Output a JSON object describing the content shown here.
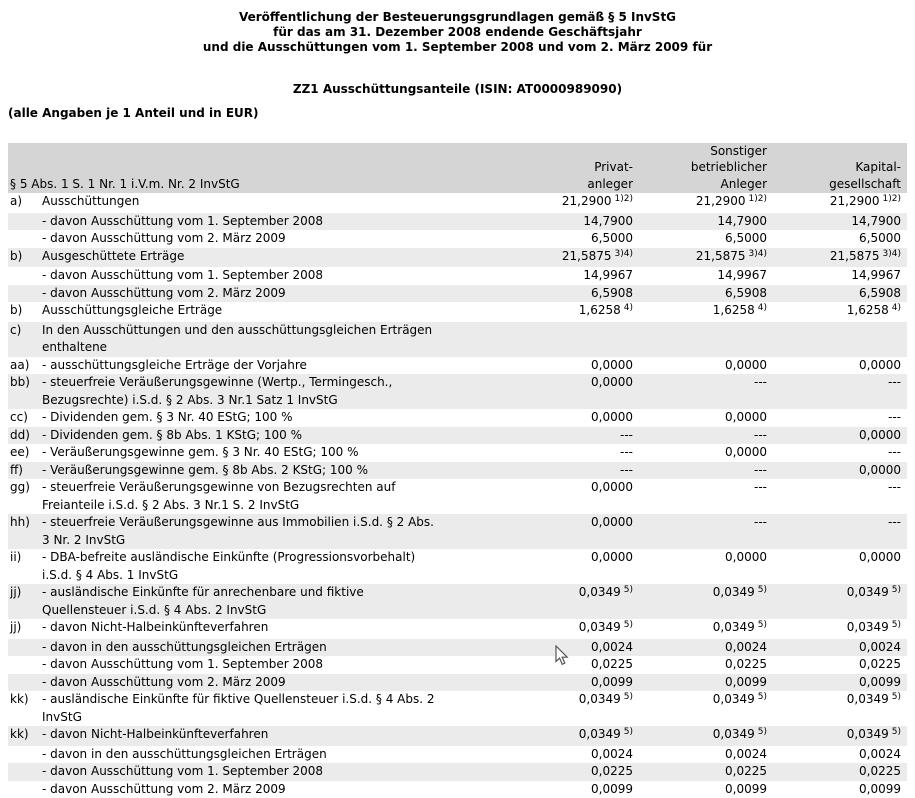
{
  "page": {
    "title_lines": [
      "Veröffentlichung der Besteuerungsgrundlagen gemäß § 5 InvStG",
      "für das am 31. Dezember 2008 endende Geschäftsjahr",
      "und die Ausschüttungen vom 1. September 2008 und vom 2. März 2009 für"
    ],
    "fund_line": "ZZ1 Ausschüttungsanteile (ISIN: AT0000989090)",
    "note_line": "(alle Angaben je 1 Anteil und in EUR)"
  },
  "colors": {
    "header_bg": "#d5d5d5",
    "stripe_bg": "#ebebeb",
    "text": "#000000"
  },
  "table": {
    "law_reference": "§ 5 Abs. 1 S. 1 Nr. 1 i.V.m. Nr. 2 InvStG",
    "column_headers": [
      [
        "Privat-",
        "anleger"
      ],
      [
        "Sonstiger",
        "betrieblicher",
        "Anleger"
      ],
      [
        "Kapital-",
        "gesellschaft"
      ]
    ],
    "rows": [
      {
        "label": "a)",
        "lines": [
          "Ausschüttungen"
        ],
        "values": [
          [
            "21,2900",
            "1)2)"
          ],
          [
            "21,2900",
            "1)2)"
          ],
          [
            "21,2900",
            "1)2)"
          ]
        ]
      },
      {
        "label": "",
        "lines": [
          "- davon Ausschüttung vom 1. September 2008"
        ],
        "values": [
          [
            "14,7900"
          ],
          [
            "14,7900"
          ],
          [
            "14,7900"
          ]
        ]
      },
      {
        "label": "",
        "lines": [
          "- davon Ausschüttung vom 2. März 2009"
        ],
        "values": [
          [
            "6,5000"
          ],
          [
            "6,5000"
          ],
          [
            "6,5000"
          ]
        ]
      },
      {
        "label": "b)",
        "lines": [
          "Ausgeschüttete Erträge"
        ],
        "values": [
          [
            "21,5875",
            "3)4)"
          ],
          [
            "21,5875",
            "3)4)"
          ],
          [
            "21,5875",
            "3)4)"
          ]
        ]
      },
      {
        "label": "",
        "lines": [
          "- davon Ausschüttung vom 1. September 2008"
        ],
        "values": [
          [
            "14,9967"
          ],
          [
            "14,9967"
          ],
          [
            "14,9967"
          ]
        ]
      },
      {
        "label": "",
        "lines": [
          "- davon Ausschüttung vom 2. März 2009"
        ],
        "values": [
          [
            "6,5908"
          ],
          [
            "6,5908"
          ],
          [
            "6,5908"
          ]
        ]
      },
      {
        "label": "b)",
        "lines": [
          "Ausschüttungsgleiche Erträge"
        ],
        "values": [
          [
            "1,6258",
            "4)"
          ],
          [
            "1,6258",
            "4)"
          ],
          [
            "1,6258",
            "4)"
          ]
        ]
      },
      {
        "label": "c)",
        "lines": [
          "In den Ausschüttungen und den ausschüttungsgleichen Erträgen",
          "enthaltene"
        ],
        "values": [
          null,
          null,
          null
        ]
      },
      {
        "label": "aa)",
        "lines": [
          "- ausschüttungsgleiche Erträge der Vorjahre"
        ],
        "values": [
          [
            "0,0000"
          ],
          [
            "0,0000"
          ],
          [
            "0,0000"
          ]
        ]
      },
      {
        "label": "bb)",
        "lines": [
          "- steuerfreie Veräußerungsgewinne (Wertp., Termingesch.,",
          "Bezugsrechte) i.S.d. § 2 Abs. 3 Nr.1 Satz 1 InvStG"
        ],
        "values": [
          [
            "0,0000"
          ],
          [
            "---"
          ],
          [
            "---"
          ]
        ]
      },
      {
        "label": "cc)",
        "lines": [
          "- Dividenden gem. § 3 Nr. 40 EStG; 100 %"
        ],
        "values": [
          [
            "0,0000"
          ],
          [
            "0,0000"
          ],
          [
            "---"
          ]
        ]
      },
      {
        "label": "dd)",
        "lines": [
          "- Dividenden gem. § 8b Abs. 1 KStG; 100 %"
        ],
        "values": [
          [
            "---"
          ],
          [
            "---"
          ],
          [
            "0,0000"
          ]
        ]
      },
      {
        "label": "ee)",
        "lines": [
          "- Veräußerungsgewinne gem. § 3 Nr. 40 EStG; 100 %"
        ],
        "values": [
          [
            "---"
          ],
          [
            "0,0000"
          ],
          [
            "---"
          ]
        ]
      },
      {
        "label": "ff)",
        "lines": [
          "- Veräußerungsgewinne gem. § 8b Abs. 2 KStG; 100 %"
        ],
        "values": [
          [
            "---"
          ],
          [
            "---"
          ],
          [
            "0,0000"
          ]
        ]
      },
      {
        "label": "gg)",
        "lines": [
          "- steuerfreie Veräußerungsgewinne von Bezugsrechten auf",
          "Freianteile i.S.d. § 2 Abs. 3 Nr.1 S. 2 InvStG"
        ],
        "values": [
          [
            "0,0000"
          ],
          [
            "---"
          ],
          [
            "---"
          ]
        ]
      },
      {
        "label": "hh)",
        "lines": [
          "- steuerfreie Veräußerungsgewinne aus Immobilien i.S.d. § 2 Abs.",
          "3 Nr. 2 InvStG"
        ],
        "values": [
          [
            "0,0000"
          ],
          [
            "---"
          ],
          [
            "---"
          ]
        ]
      },
      {
        "label": "ii)",
        "lines": [
          "- DBA-befreite ausländische Einkünfte (Progressionsvorbehalt)",
          "i.S.d. § 4 Abs. 1 InvStG"
        ],
        "values": [
          [
            "0,0000"
          ],
          [
            "0,0000"
          ],
          [
            "0,0000"
          ]
        ]
      },
      {
        "label": "jj)",
        "lines": [
          "- ausländische Einkünfte für anrechenbare und fiktive",
          "Quellensteuer i.S.d. § 4 Abs. 2 InvStG"
        ],
        "values": [
          [
            "0,0349",
            "5)"
          ],
          [
            "0,0349",
            "5)"
          ],
          [
            "0,0349",
            "5)"
          ]
        ]
      },
      {
        "label": "jj)",
        "lines": [
          "- davon Nicht-Halbeinkünfteverfahren"
        ],
        "values": [
          [
            "0,0349",
            "5)"
          ],
          [
            "0,0349",
            "5)"
          ],
          [
            "0,0349",
            "5)"
          ]
        ]
      },
      {
        "label": "",
        "lines": [
          "- davon in den ausschüttungsgleichen Erträgen"
        ],
        "values": [
          [
            "0,0024"
          ],
          [
            "0,0024"
          ],
          [
            "0,0024"
          ]
        ]
      },
      {
        "label": "",
        "lines": [
          "- davon Ausschüttung vom 1. September 2008"
        ],
        "values": [
          [
            "0,0225"
          ],
          [
            "0,0225"
          ],
          [
            "0,0225"
          ]
        ]
      },
      {
        "label": "",
        "lines": [
          "- davon Ausschüttung vom 2. März 2009"
        ],
        "values": [
          [
            "0,0099"
          ],
          [
            "0,0099"
          ],
          [
            "0,0099"
          ]
        ]
      },
      {
        "label": "kk)",
        "lines": [
          "- ausländische Einkünfte für fiktive Quellensteuer i.S.d. § 4 Abs. 2",
          "InvStG"
        ],
        "values": [
          [
            "0,0349",
            "5)"
          ],
          [
            "0,0349",
            "5)"
          ],
          [
            "0,0349",
            "5)"
          ]
        ]
      },
      {
        "label": "kk)",
        "lines": [
          "- davon Nicht-Halbeinkünfteverfahren"
        ],
        "values": [
          [
            "0,0349",
            "5)"
          ],
          [
            "0,0349",
            "5)"
          ],
          [
            "0,0349",
            "5)"
          ]
        ]
      },
      {
        "label": "",
        "lines": [
          "- davon in den ausschüttungsgleichen Erträgen"
        ],
        "values": [
          [
            "0,0024"
          ],
          [
            "0,0024"
          ],
          [
            "0,0024"
          ]
        ]
      },
      {
        "label": "",
        "lines": [
          "- davon Ausschüttung vom 1. September 2008"
        ],
        "values": [
          [
            "0,0225"
          ],
          [
            "0,0225"
          ],
          [
            "0,0225"
          ]
        ]
      },
      {
        "label": "",
        "lines": [
          "- davon Ausschüttung vom 2. März 2009"
        ],
        "values": [
          [
            "0,0099"
          ],
          [
            "0,0099"
          ],
          [
            "0,0099"
          ]
        ]
      }
    ]
  }
}
